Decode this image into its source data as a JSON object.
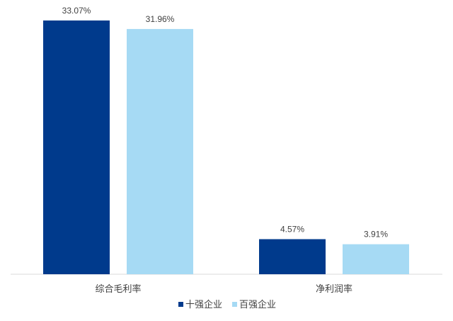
{
  "chart_data": {
    "type": "bar",
    "categories": [
      "综合毛利率",
      "净利润率"
    ],
    "series": [
      {
        "name": "十强企业",
        "values": [
          33.07,
          4.57
        ],
        "labels": [
          "33.07%",
          "4.57%"
        ],
        "color": "#003A8C"
      },
      {
        "name": "百强企业",
        "values": [
          31.96,
          3.91
        ],
        "labels": [
          "31.96%",
          "3.91%"
        ],
        "color": "#A6DAF4"
      }
    ],
    "ylim": [
      0,
      35
    ],
    "grid": false,
    "legend": "bottom",
    "axis_color": "#d9d9d9"
  }
}
